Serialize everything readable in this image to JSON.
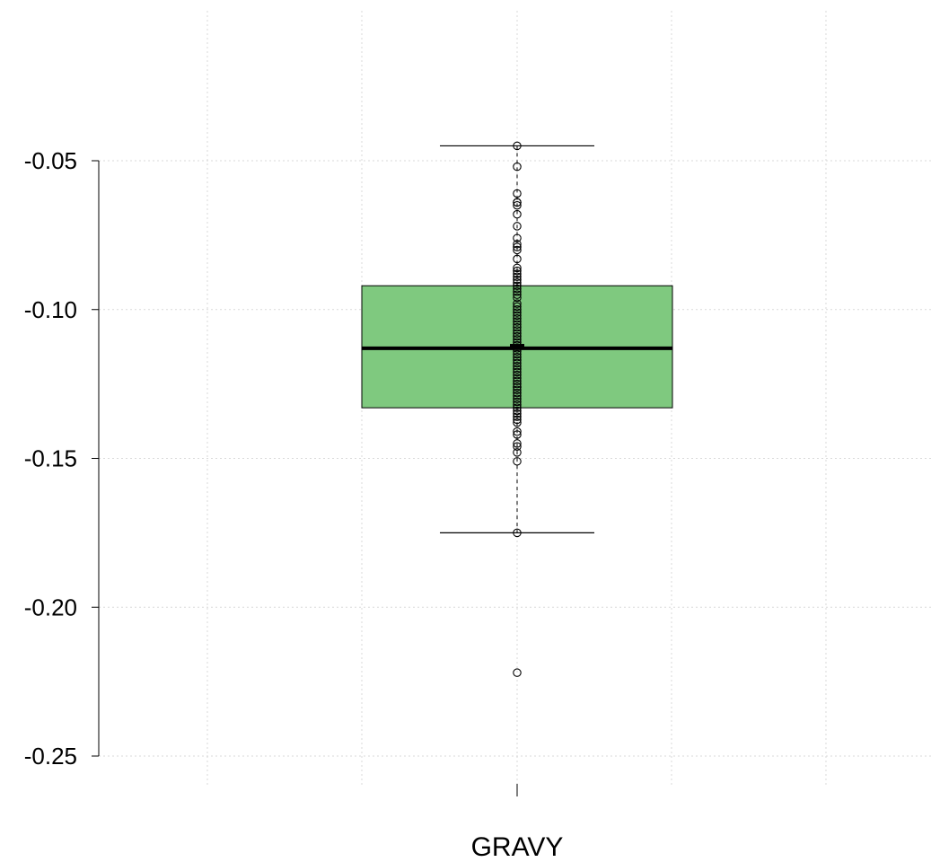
{
  "chart_data": {
    "type": "box",
    "title": "",
    "xlabel": "",
    "ylabel": "",
    "categories": [
      "GRAVY"
    ],
    "ylim": [
      -0.26,
      0.0
    ],
    "yticks": [
      -0.05,
      -0.1,
      -0.15,
      -0.2,
      -0.25
    ],
    "ytick_labels": [
      "-0.05",
      "-0.10",
      "-0.15",
      "-0.20",
      "-0.25"
    ],
    "grid": true,
    "box_color": "#7fc97f",
    "series": [
      {
        "category": "GRAVY",
        "min": -0.175,
        "q1": -0.133,
        "median": -0.113,
        "q3": -0.092,
        "max": -0.045,
        "mean": -0.112,
        "outliers": [
          -0.222
        ],
        "points": [
          -0.045,
          -0.052,
          -0.061,
          -0.064,
          -0.064,
          -0.065,
          -0.068,
          -0.072,
          -0.076,
          -0.078,
          -0.079,
          -0.08,
          -0.083,
          -0.086,
          -0.087,
          -0.088,
          -0.089,
          -0.09,
          -0.091,
          -0.092,
          -0.093,
          -0.094,
          -0.095,
          -0.096,
          -0.098,
          -0.099,
          -0.1,
          -0.101,
          -0.102,
          -0.103,
          -0.104,
          -0.105,
          -0.106,
          -0.107,
          -0.108,
          -0.109,
          -0.11,
          -0.111,
          -0.112,
          -0.113,
          -0.114,
          -0.115,
          -0.116,
          -0.117,
          -0.118,
          -0.119,
          -0.12,
          -0.121,
          -0.122,
          -0.123,
          -0.124,
          -0.125,
          -0.126,
          -0.126,
          -0.127,
          -0.128,
          -0.129,
          -0.13,
          -0.131,
          -0.132,
          -0.133,
          -0.134,
          -0.135,
          -0.136,
          -0.137,
          -0.138,
          -0.141,
          -0.142,
          -0.145,
          -0.146,
          -0.148,
          -0.151,
          -0.175,
          -0.222
        ]
      }
    ]
  }
}
